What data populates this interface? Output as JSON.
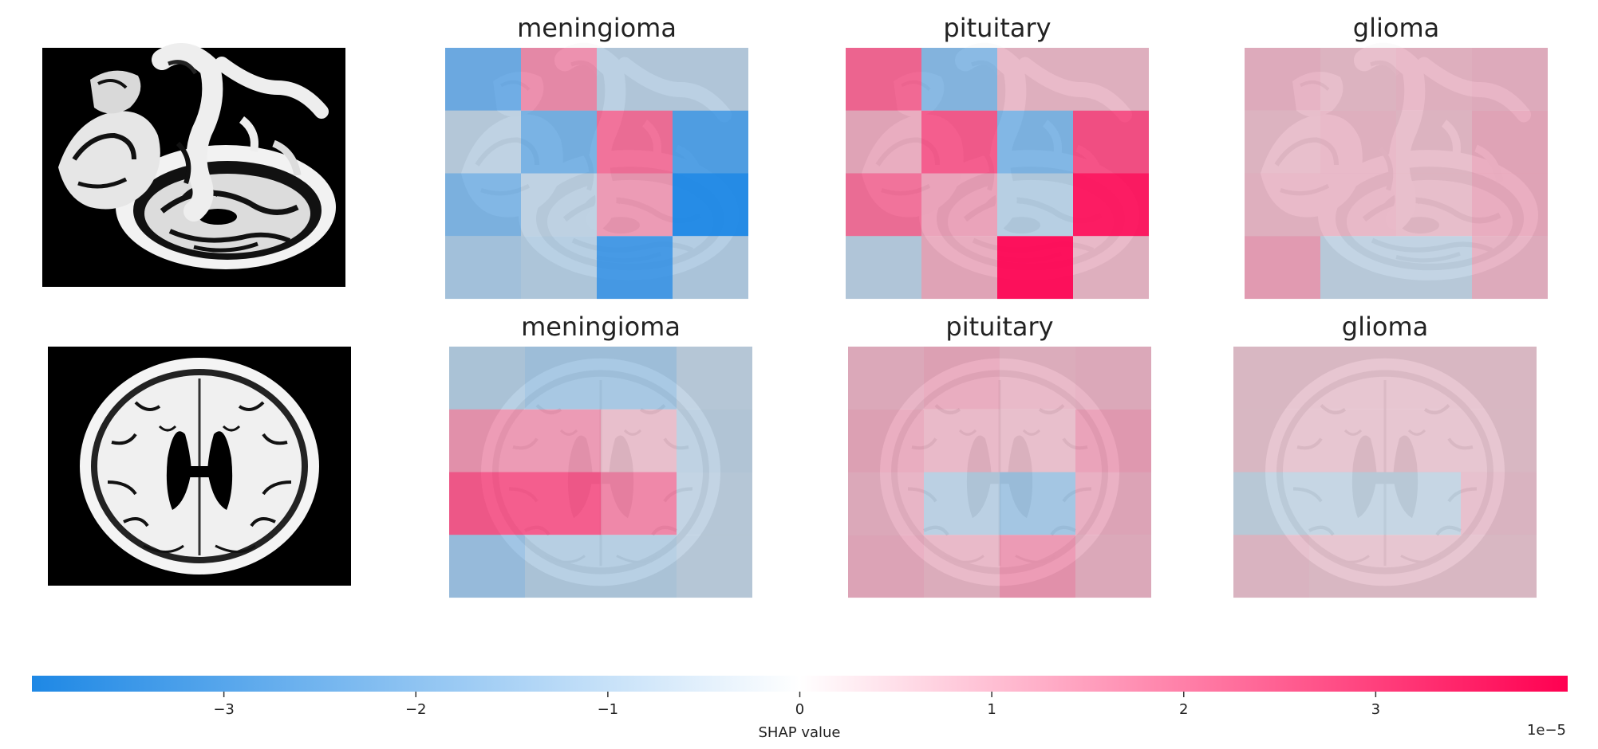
{
  "figure": {
    "rows": [
      {
        "name": "row-sagittal",
        "scan": "sagittal",
        "panels": [
          {
            "title": "meningioma",
            "grid": [
              [
                -2.2,
                1.2,
                -0.4,
                -0.4
              ],
              [
                -0.3,
                -2.0,
                1.8,
                -2.8
              ],
              [
                -1.8,
                -0.3,
                1.0,
                -3.6
              ],
              [
                -0.8,
                -0.5,
                -3.0,
                -0.6
              ]
            ]
          },
          {
            "title": "pituitary",
            "grid": [
              [
                2.0,
                -1.6,
                0.3,
                0.3
              ],
              [
                0.6,
                2.2,
                -1.8,
                2.4
              ],
              [
                1.8,
                0.8,
                -0.5,
                3.3
              ],
              [
                -0.4,
                0.6,
                3.5,
                0.3
              ]
            ]
          },
          {
            "title": "glioma",
            "grid": [
              [
                0.4,
                0.2,
                0.3,
                0.4
              ],
              [
                0.2,
                0.3,
                0.2,
                0.6
              ],
              [
                0.3,
                0.3,
                0.2,
                0.6
              ],
              [
                0.8,
                -0.2,
                -0.2,
                0.4
              ]
            ]
          }
        ]
      },
      {
        "name": "row-axial",
        "scan": "axial",
        "panels": [
          {
            "title": "meningioma",
            "grid": [
              [
                -0.5,
                -0.9,
                -0.9,
                -0.2
              ],
              [
                1.0,
                1.0,
                0.2,
                -0.3
              ],
              [
                2.2,
                2.2,
                1.4,
                -0.2
              ],
              [
                -1.1,
                -0.5,
                -0.5,
                -0.2
              ]
            ]
          },
          {
            "title": "pituitary",
            "grid": [
              [
                0.4,
                0.6,
                0.3,
                0.4
              ],
              [
                0.6,
                0.3,
                0.2,
                0.8
              ],
              [
                0.4,
                -0.4,
                -1.0,
                0.5
              ],
              [
                0.5,
                0.3,
                1.0,
                0.4
              ]
            ]
          },
          {
            "title": "glioma",
            "grid": [
              [
                0.0,
                0.0,
                0.0,
                0.0
              ],
              [
                0.0,
                0.0,
                0.0,
                0.0
              ],
              [
                -0.1,
                -0.1,
                -0.1,
                0.1
              ],
              [
                0.1,
                0.0,
                0.0,
                0.0
              ]
            ]
          }
        ]
      }
    ]
  },
  "colorbar": {
    "min": -4,
    "max": 4,
    "ticks": [
      {
        "value": -3,
        "label": "−3"
      },
      {
        "value": -2,
        "label": "−2"
      },
      {
        "value": -1,
        "label": "−1"
      },
      {
        "value": 0,
        "label": "0"
      },
      {
        "value": 1,
        "label": "1"
      },
      {
        "value": 2,
        "label": "2"
      },
      {
        "value": 3,
        "label": "3"
      }
    ],
    "label": "SHAP value",
    "multiplier": "1e−5",
    "colors": {
      "negative": "#1e88e5",
      "zero": "#ffffff",
      "positive": "#ff0051",
      "neutral_overlay": "#d8d8d8"
    }
  }
}
